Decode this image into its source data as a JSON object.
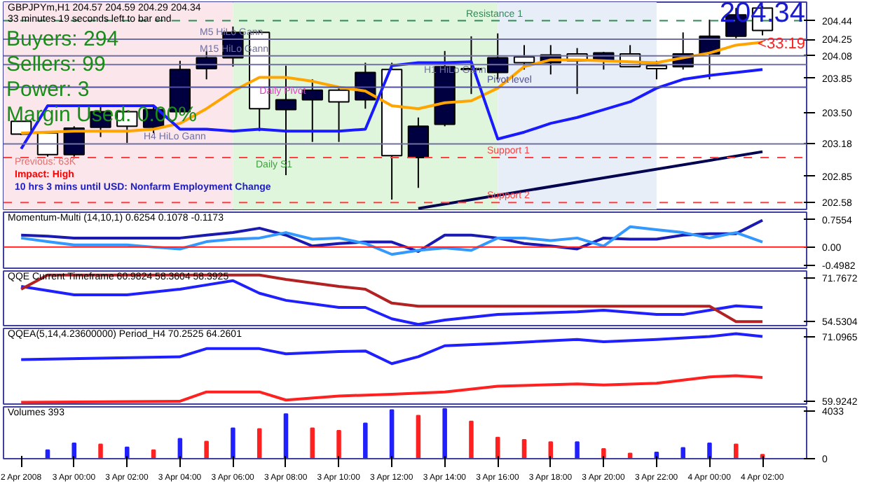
{
  "chart_data": [
    {
      "type": "candlestick",
      "title": "GBPJPYm,H1  204.57 204.59 204.29 204.34",
      "subtitle": "33 minutes 19 seconds left to bar end",
      "x": [
        "2008-04-02T22:00",
        "2008-04-02T23:00",
        "2008-04-03T00:00",
        "2008-04-03T01:00",
        "2008-04-03T02:00",
        "2008-04-03T03:00",
        "2008-04-03T04:00",
        "2008-04-03T05:00",
        "2008-04-03T06:00",
        "2008-04-03T07:00",
        "2008-04-03T08:00",
        "2008-04-03T09:00",
        "2008-04-03T10:00",
        "2008-04-03T11:00",
        "2008-04-03T12:00",
        "2008-04-03T13:00",
        "2008-04-03T14:00",
        "2008-04-03T15:00",
        "2008-04-03T16:00",
        "2008-04-03T17:00",
        "2008-04-03T18:00",
        "2008-04-03T19:00",
        "2008-04-03T20:00",
        "2008-04-03T21:00",
        "2008-04-03T22:00",
        "2008-04-03T23:00",
        "2008-04-04T00:00",
        "2008-04-04T01:00",
        "2008-04-04T02:00"
      ],
      "ohlc": [
        [
          203.41,
          203.42,
          203.27,
          203.28
        ],
        [
          203.29,
          203.3,
          203.05,
          203.07
        ],
        [
          203.07,
          203.36,
          203.05,
          203.34
        ],
        [
          203.35,
          203.57,
          203.25,
          203.51
        ],
        [
          203.51,
          203.52,
          203.19,
          203.36
        ],
        [
          203.35,
          203.57,
          203.29,
          203.53
        ],
        [
          203.51,
          204.03,
          203.49,
          203.94
        ],
        [
          203.95,
          204.13,
          203.84,
          204.06
        ],
        [
          204.06,
          204.38,
          203.97,
          204.32
        ],
        [
          204.32,
          204.34,
          203.31,
          203.54
        ],
        [
          203.53,
          203.98,
          202.86,
          203.63
        ],
        [
          203.63,
          203.84,
          203.2,
          203.73
        ],
        [
          203.73,
          203.76,
          203.2,
          203.61
        ],
        [
          203.63,
          204.01,
          203.54,
          203.91
        ],
        [
          203.94,
          204.01,
          202.61,
          203.06
        ],
        [
          203.04,
          203.45,
          202.73,
          203.36
        ],
        [
          203.38,
          204.13,
          203.36,
          203.97
        ],
        [
          203.95,
          204.28,
          203.69,
          203.94
        ],
        [
          203.91,
          204.31,
          203.84,
          204.06
        ],
        [
          204.07,
          204.19,
          203.94,
          204.01
        ],
        [
          204.01,
          204.19,
          203.89,
          204.09
        ],
        [
          204.1,
          204.16,
          203.69,
          204.03
        ],
        [
          204.03,
          204.12,
          203.94,
          204.11
        ],
        [
          204.1,
          204.19,
          203.97,
          203.97
        ],
        [
          203.98,
          204.03,
          203.84,
          203.95
        ],
        [
          203.97,
          204.32,
          203.94,
          204.1
        ],
        [
          204.1,
          204.45,
          203.84,
          204.28
        ],
        [
          204.28,
          204.57,
          204.26,
          204.5
        ],
        [
          204.57,
          204.59,
          204.29,
          204.34
        ]
      ],
      "colors": [
        "#ffffff",
        "#ffffff",
        "#000040",
        "#000040",
        "#ffffff",
        "#000040",
        "#000040",
        "#000040",
        "#000040",
        "#ffffff",
        "#000040",
        "#000040",
        "#ffffff",
        "#000040",
        "#ffffff",
        "#000040",
        "#000040",
        "#ffffff",
        "#000040",
        "#ffffff",
        "#000040",
        "#ffffff",
        "#000040",
        "#ffffff",
        "#ffffff",
        "#000040",
        "#000040",
        "#000040",
        "#ffffff"
      ],
      "series": [
        {
          "type": "line",
          "color": "#ffa500",
          "values": [
            203.29,
            203.3,
            203.31,
            203.31,
            203.31,
            203.33,
            203.39,
            203.54,
            203.72,
            203.86,
            203.86,
            203.82,
            203.76,
            203.72,
            203.57,
            203.54,
            203.6,
            203.62,
            203.75,
            203.97,
            204.04,
            204.04,
            204.03,
            204.02,
            204.01,
            204.06,
            204.11,
            204.19,
            204.22
          ]
        },
        {
          "type": "line",
          "color": "#1a1aff",
          "values": [
            203.13,
            203.57,
            203.57,
            203.57,
            203.57,
            203.57,
            203.33,
            203.33,
            203.31,
            203.33,
            203.31,
            203.31,
            203.31,
            203.33,
            203.98,
            204.01,
            204.01,
            204.02,
            203.23,
            203.3,
            203.39,
            203.45,
            203.53,
            203.61,
            203.75,
            203.84,
            203.88,
            203.91,
            203.94
          ]
        },
        {
          "type": "line",
          "color": "#000050",
          "x": [
            "2008-04-03T13:00",
            "2008-04-04T02:00"
          ],
          "values": [
            202.52,
            203.1
          ]
        }
      ],
      "xlim": [
        "2008-04-02T21:20",
        "2008-04-04T03:40"
      ],
      "ylim": [
        202.51,
        204.63
      ],
      "yticks": [
        204.44,
        204.25,
        204.08,
        203.85,
        {
          "value": 203.5,
          "label": "203.50"
        },
        203.18,
        202.85,
        202.58
      ],
      "tick_labels": "y",
      "grid": false,
      "bands": [
        {
          "axis": "x",
          "from": "2008-04-02T21:20",
          "to": "2008-04-03T06:00",
          "color": "#fbe6ec"
        },
        {
          "axis": "x",
          "from": "2008-04-03T06:00",
          "to": "2008-04-03T16:00",
          "color": "#e0f6dc"
        },
        {
          "axis": "x",
          "from": "2008-04-03T16:00",
          "to": "2008-04-03T22:00",
          "color": "#e8eef8"
        }
      ],
      "ref_lines": [
        {
          "axis": "y",
          "value": 204.44,
          "label": "Resistance 1",
          "color": "#2e8b57",
          "line_style": "dashed"
        },
        {
          "axis": "y",
          "value": 204.25,
          "label": "M5 HiLo Gann",
          "color": "#7070a0",
          "line_style": "solid"
        },
        {
          "axis": "y",
          "value": 204.08,
          "label": "M15 HiLo Gann",
          "color": "#7070a0",
          "line_style": "solid"
        },
        {
          "axis": "y",
          "value": 203.99,
          "label": "H1 HiLo Gann",
          "color": "#7070a0",
          "line_style": "solid"
        },
        {
          "axis": "y",
          "value": 203.76,
          "label": "Pivot level",
          "color": "#5050a0",
          "line_style": "solid"
        },
        {
          "axis": "y",
          "value": 203.18,
          "label": "H4 HiLo Gann",
          "color": "#7070a0",
          "line_style": "solid"
        },
        {
          "axis": "y",
          "value": 203.04,
          "label": "Support 1",
          "color": "#ff4040",
          "line_style": "dashed"
        },
        {
          "axis": "y",
          "value": 202.58,
          "label": "Support 2",
          "color": "#ff4040",
          "line_style": "dashed"
        }
      ],
      "annotations": [
        "Buyers: 294",
        "Sellers: 99",
        "Power: 3",
        "Margin Used: 0.00%",
        "Previous: 63K",
        "Impact: High",
        "10 hrs 3 mins until USD: Nonfarm Employment Change",
        "204.34",
        "<33:19",
        {
          "text": "Daily Pivot",
          "x": "2008-04-03T07:00",
          "y": 203.66
        },
        "Daily S1"
      ]
    },
    {
      "type": "line",
      "title": "Momentum-Multi (14,10,1) 0.6254 0.1078 -0.1173",
      "x": [
        "2008-04-02T22:00",
        "2008-04-02T23:00",
        "2008-04-03T00:00",
        "2008-04-03T01:00",
        "2008-04-03T02:00",
        "2008-04-03T03:00",
        "2008-04-03T04:00",
        "2008-04-03T05:00",
        "2008-04-03T06:00",
        "2008-04-03T07:00",
        "2008-04-03T08:00",
        "2008-04-03T09:00",
        "2008-04-03T10:00",
        "2008-04-03T11:00",
        "2008-04-03T12:00",
        "2008-04-03T13:00",
        "2008-04-03T14:00",
        "2008-04-03T15:00",
        "2008-04-03T16:00",
        "2008-04-03T17:00",
        "2008-04-03T18:00",
        "2008-04-03T19:00",
        "2008-04-03T20:00",
        "2008-04-03T21:00",
        "2008-04-03T22:00",
        "2008-04-03T23:00",
        "2008-04-04T00:00",
        "2008-04-04T01:00",
        "2008-04-04T02:00"
      ],
      "series": [
        {
          "color": "#1a1ab0",
          "values": [
            0.33,
            0.3,
            0.25,
            0.25,
            0.25,
            0.25,
            0.25,
            0.33,
            0.4,
            0.52,
            0.33,
            0.03,
            0.1,
            0.14,
            0.14,
            -0.12,
            0.33,
            0.33,
            0.25,
            0.1,
            0.03,
            -0.05,
            0.25,
            0.22,
            0.22,
            0.33,
            0.37,
            0.37,
            0.74
          ]
        },
        {
          "color": "#3399ff",
          "values": [
            0.25,
            0.15,
            0.06,
            0.06,
            0.06,
            0.0,
            -0.05,
            0.15,
            0.22,
            0.25,
            0.4,
            0.22,
            0.25,
            0.1,
            -0.2,
            -0.09,
            -0.02,
            -0.09,
            0.25,
            0.25,
            0.18,
            0.25,
            0.03,
            0.56,
            0.48,
            0.4,
            0.25,
            0.4,
            0.14
          ]
        }
      ],
      "xlim": [
        "2008-04-02T21:20",
        "2008-04-04T03:40"
      ],
      "ylim": [
        -0.58,
        0.96
      ],
      "yticks": [
        0.7554,
        {
          "value": 0,
          "label": "0.00"
        },
        -0.4982
      ],
      "tick_labels": "y",
      "grid": false,
      "ref_lines": [
        {
          "axis": "y",
          "value": 0,
          "color": "#ff2020",
          "line_style": "solid"
        }
      ]
    },
    {
      "type": "line",
      "title": "QQE Current Timeframe 60.9824 58.3604 58.3925",
      "series": [
        {
          "color": "#2020ff",
          "x": [
            "2008-04-02T22:00",
            "2008-04-03T00:00",
            "2008-04-03T02:00",
            "2008-04-03T04:00",
            "2008-04-03T05:00",
            "2008-04-03T06:00",
            "2008-04-03T07:00",
            "2008-04-03T08:00",
            "2008-04-03T10:00",
            "2008-04-03T11:00",
            "2008-04-03T12:00",
            "2008-04-03T13:00",
            "2008-04-03T14:00",
            "2008-04-03T16:00",
            "2008-04-03T19:00",
            "2008-04-03T20:00",
            "2008-04-03T22:00",
            "2008-04-03T23:00",
            "2008-04-04T00:00",
            "2008-04-04T01:00",
            "2008-04-04T02:00"
          ],
          "values": [
            68.4,
            65.1,
            65.1,
            67.3,
            69.0,
            70.7,
            65.7,
            62.9,
            60.1,
            60.1,
            55.6,
            53.4,
            55.1,
            57.3,
            58.4,
            59.0,
            57.3,
            57.3,
            59.0,
            60.7,
            60.1
          ]
        },
        {
          "color": "#b22222",
          "x": [
            "2008-04-02T22:00",
            "2008-04-02T23:00",
            "2008-04-03T07:00",
            "2008-04-03T08:00",
            "2008-04-03T10:00",
            "2008-04-03T11:00",
            "2008-04-03T12:00",
            "2008-04-03T13:00",
            "2008-04-04T00:00",
            "2008-04-04T01:00",
            "2008-04-04T02:00"
          ],
          "values": [
            67.3,
            72.9,
            72.9,
            71.2,
            68.4,
            67.3,
            61.8,
            60.6,
            60.6,
            54.5,
            54.5
          ]
        }
      ],
      "xlim": [
        "2008-04-02T21:20",
        "2008-04-04T03:40"
      ],
      "ylim": [
        52.9,
        74.5
      ],
      "yticks": [
        71.7672,
        54.5304
      ],
      "tick_labels": "y",
      "grid": false
    },
    {
      "type": "line",
      "title": "QQEA(5,14,4.23600000) Period_H4 70.2525 64.2601",
      "series": [
        {
          "color": "#2020ff",
          "x": [
            "2008-04-02T22:00",
            "2008-04-03T04:00",
            "2008-04-03T05:00",
            "2008-04-03T07:00",
            "2008-04-03T08:00",
            "2008-04-03T10:00",
            "2008-04-03T11:00",
            "2008-04-03T12:00",
            "2008-04-03T13:00",
            "2008-04-03T14:00",
            "2008-04-03T16:00",
            "2008-04-03T19:00",
            "2008-04-03T20:00",
            "2008-04-03T22:00",
            "2008-04-04T00:00",
            "2008-04-04T01:00",
            "2008-04-04T02:00"
          ],
          "values": [
            67.1,
            67.6,
            69.0,
            69.0,
            68.1,
            68.5,
            68.6,
            66.4,
            67.6,
            69.5,
            69.9,
            70.6,
            70.2,
            70.6,
            71.1,
            71.6,
            71.1
          ]
        },
        {
          "color": "#ff2020",
          "x": [
            "2008-04-02T22:00",
            "2008-04-03T04:00",
            "2008-04-03T05:00",
            "2008-04-03T07:00",
            "2008-04-03T08:00",
            "2008-04-03T10:00",
            "2008-04-03T12:00",
            "2008-04-03T14:00",
            "2008-04-03T16:00",
            "2008-04-03T19:00",
            "2008-04-03T20:00",
            "2008-04-03T22:00",
            "2008-04-04T00:00",
            "2008-04-04T01:00",
            "2008-04-04T02:00"
          ],
          "values": [
            59.7,
            59.9,
            61.5,
            61.5,
            60.1,
            60.8,
            61.1,
            61.5,
            62.5,
            62.9,
            62.7,
            63.0,
            64.1,
            64.3,
            64.0
          ]
        }
      ],
      "xlim": [
        "2008-04-02T21:20",
        "2008-04-04T03:40"
      ],
      "ylim": [
        59.4,
        72.5
      ],
      "yticks": [
        71.0965,
        59.9242
      ],
      "tick_labels": "y",
      "grid": false
    },
    {
      "type": "bar",
      "title": "Volumes 393",
      "x": [
        "2008-04-02T23:00",
        "2008-04-03T00:00",
        "2008-04-03T01:00",
        "2008-04-03T02:00",
        "2008-04-03T03:00",
        "2008-04-03T04:00",
        "2008-04-03T05:00",
        "2008-04-03T06:00",
        "2008-04-03T07:00",
        "2008-04-03T08:00",
        "2008-04-03T09:00",
        "2008-04-03T10:00",
        "2008-04-03T11:00",
        "2008-04-03T12:00",
        "2008-04-03T13:00",
        "2008-04-03T14:00",
        "2008-04-03T15:00",
        "2008-04-03T16:00",
        "2008-04-03T17:00",
        "2008-04-03T18:00",
        "2008-04-03T19:00",
        "2008-04-03T20:00",
        "2008-04-03T21:00",
        "2008-04-03T22:00",
        "2008-04-03T23:00",
        "2008-04-04T00:00",
        "2008-04-04T01:00",
        "2008-04-04T02:00"
      ],
      "values": [
        730,
        1310,
        1220,
        970,
        730,
        1700,
        1460,
        2580,
        2530,
        3790,
        2580,
        2380,
        3010,
        4130,
        3650,
        4230,
        3160,
        1800,
        1600,
        1410,
        1410,
        830,
        440,
        540,
        920,
        1310,
        1220,
        340
      ],
      "colors": [
        "#2020ff",
        "#2020ff",
        "#ff2020",
        "#2020ff",
        "#ff2020",
        "#2020ff",
        "#ff2020",
        "#2020ff",
        "#ff2020",
        "#2020ff",
        "#ff2020",
        "#ff2020",
        "#2020ff",
        "#2020ff",
        "#ff2020",
        "#2020ff",
        "#ff2020",
        "#ff2020",
        "#ff2020",
        "#ff2020",
        "#2020ff",
        "#ff2020",
        "#ff2020",
        "#2020ff",
        "#2020ff",
        "#2020ff",
        "#ff2020",
        "#ff2020"
      ],
      "xlim": [
        "2008-04-02T21:20",
        "2008-04-04T03:40"
      ],
      "ylim": [
        0,
        4400
      ],
      "yticks": [
        4033,
        0
      ],
      "grid": false,
      "xticks": [
        {
          "value": "2008-04-02T22:00",
          "label": "2 Apr 2008"
        },
        {
          "value": "2008-04-03T00:00",
          "label": "3 Apr 00:00"
        },
        {
          "value": "2008-04-03T02:00",
          "label": "3 Apr 02:00"
        },
        {
          "value": "2008-04-03T04:00",
          "label": "3 Apr 04:00"
        },
        {
          "value": "2008-04-03T06:00",
          "label": "3 Apr 06:00"
        },
        {
          "value": "2008-04-03T08:00",
          "label": "3 Apr 08:00"
        },
        {
          "value": "2008-04-03T10:00",
          "label": "3 Apr 10:00"
        },
        {
          "value": "2008-04-03T12:00",
          "label": "3 Apr 12:00"
        },
        {
          "value": "2008-04-03T14:00",
          "label": "3 Apr 14:00"
        },
        {
          "value": "2008-04-03T16:00",
          "label": "3 Apr 16:00"
        },
        {
          "value": "2008-04-03T18:00",
          "label": "3 Apr 18:00"
        },
        {
          "value": "2008-04-03T20:00",
          "label": "3 Apr 20:00"
        },
        {
          "value": "2008-04-03T22:00",
          "label": "3 Apr 22:00"
        },
        {
          "value": "2008-04-04T00:00",
          "label": "4 Apr 00:00"
        },
        {
          "value": "2008-04-04T02:00",
          "label": "4 Apr 02:00"
        }
      ]
    }
  ]
}
